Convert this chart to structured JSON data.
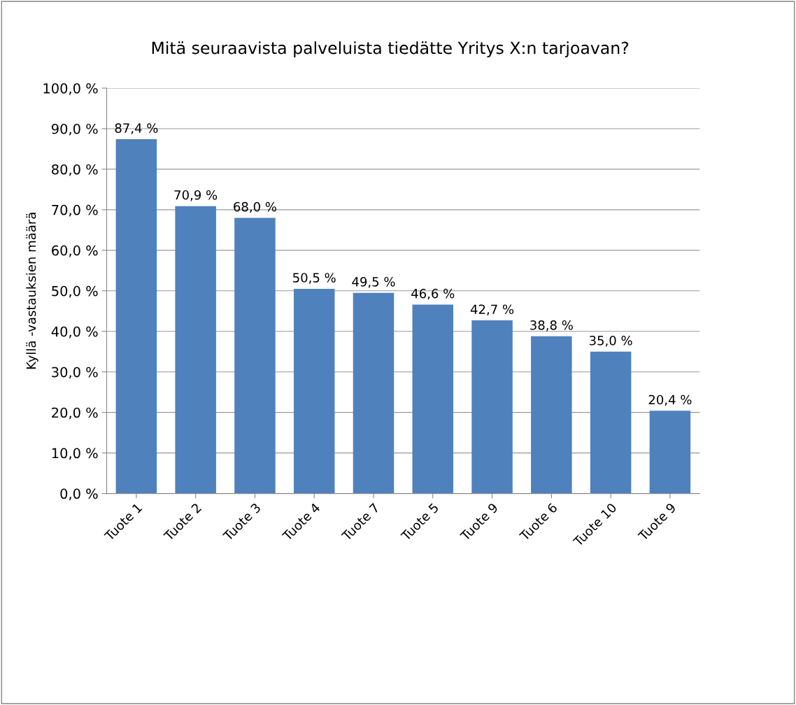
{
  "chart_data": {
    "type": "bar",
    "title": "Mitä seuraavista palveluista tiedätte Yritys X:n tarjoavan?",
    "ylabel": "Kyllä -vastauksien määrä",
    "categories": [
      "Tuote 1",
      "Tuote 2",
      "Tuote 3",
      "Tuote 4",
      "Tuote 7",
      "Tuote 5",
      "Tuote 9",
      "Tuote 6",
      "Tuote 10",
      "Tuote 9"
    ],
    "values": [
      87.4,
      70.9,
      68.0,
      50.5,
      49.5,
      46.6,
      42.7,
      38.8,
      35.0,
      20.4
    ],
    "value_labels": [
      "87,4 %",
      "70,9 %",
      "68,0 %",
      "50,5 %",
      "49,5 %",
      "46,6 %",
      "42,7 %",
      "38,8 %",
      "35,0 %",
      "20,4 %"
    ],
    "color": "#4f81bd",
    "ylim": [
      0,
      100
    ],
    "yticks": [
      {
        "value": 0,
        "label": "0,0 %"
      },
      {
        "value": 10,
        "label": "10,0 %"
      },
      {
        "value": 20,
        "label": "20,0 %"
      },
      {
        "value": 30,
        "label": "30,0 %"
      },
      {
        "value": 40,
        "label": "40,0 %"
      },
      {
        "value": 50,
        "label": "50,0 %"
      },
      {
        "value": 60,
        "label": "60,0 %"
      },
      {
        "value": 70,
        "label": "70,0 %"
      },
      {
        "value": 80,
        "label": "80,0 %"
      },
      {
        "value": 90,
        "label": "90,0 %"
      },
      {
        "value": 100,
        "label": "100,0 %"
      }
    ],
    "grid": "y",
    "legend": false
  }
}
